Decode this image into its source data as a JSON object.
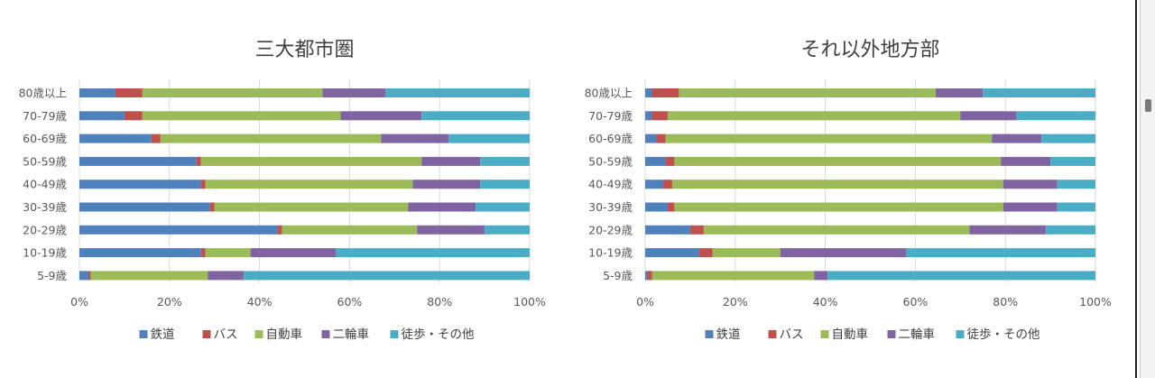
{
  "colors": {
    "rail": "#4f81bd",
    "bus": "#c0504d",
    "car": "#9bbb59",
    "twowheel": "#8064a2",
    "walk": "#4bacc6"
  },
  "chart_data": [
    {
      "type": "bar",
      "orientation": "horizontal",
      "stacked": true,
      "title": "三大都市圏",
      "categories": [
        "80歳以上",
        "70-79歳",
        "60-69歳",
        "50-59歳",
        "40-49歳",
        "30-39歳",
        "20-29歳",
        "10-19歳",
        "5-9歳"
      ],
      "xlim": [
        0,
        100
      ],
      "xticks": [
        "0%",
        "20%",
        "40%",
        "60%",
        "80%",
        "100%"
      ],
      "grid": true,
      "legend_position": "bottom",
      "series": [
        {
          "name": "鉄道",
          "color": "#4f81bd",
          "values": [
            8,
            10,
            16,
            26,
            27,
            29,
            44,
            27,
            2
          ]
        },
        {
          "name": "バス",
          "color": "#c0504d",
          "values": [
            6,
            4,
            2,
            1,
            1,
            1,
            1,
            1,
            0.5
          ]
        },
        {
          "name": "自動車",
          "color": "#9bbb59",
          "values": [
            40,
            44,
            49,
            49,
            46,
            43,
            30,
            10,
            26
          ]
        },
        {
          "name": "二輪車",
          "color": "#8064a2",
          "values": [
            14,
            18,
            15,
            13,
            15,
            15,
            15,
            19,
            8
          ]
        },
        {
          "name": "徒歩・その他",
          "color": "#4bacc6",
          "values": [
            32,
            24,
            18,
            11,
            11,
            12,
            10,
            43,
            63.5
          ]
        }
      ]
    },
    {
      "type": "bar",
      "orientation": "horizontal",
      "stacked": true,
      "title": "それ以外地方部",
      "categories": [
        "80歳以上",
        "70-79歳",
        "60-69歳",
        "50-59歳",
        "40-49歳",
        "30-39歳",
        "20-29歳",
        "10-19歳",
        "5-9歳"
      ],
      "xlim": [
        0,
        100
      ],
      "xticks": [
        "0%",
        "20%",
        "40%",
        "60%",
        "80%",
        "100%"
      ],
      "grid": true,
      "legend_position": "bottom",
      "series": [
        {
          "name": "鉄道",
          "color": "#4f81bd",
          "values": [
            1.5,
            1.5,
            2.5,
            4.5,
            4,
            5,
            10,
            12,
            0.5
          ]
        },
        {
          "name": "バス",
          "color": "#c0504d",
          "values": [
            6,
            3.5,
            2,
            2,
            2,
            1.5,
            3,
            3,
            1
          ]
        },
        {
          "name": "自動車",
          "color": "#9bbb59",
          "values": [
            57,
            65,
            72.5,
            72.5,
            73.5,
            73,
            59,
            15,
            36
          ]
        },
        {
          "name": "二輪車",
          "color": "#8064a2",
          "values": [
            10.5,
            12.5,
            11,
            11,
            12,
            12,
            17,
            28,
            3
          ]
        },
        {
          "name": "徒歩・その他",
          "color": "#4bacc6",
          "values": [
            25,
            17.5,
            12,
            10,
            8.5,
            8.5,
            11,
            42,
            59.5
          ]
        }
      ]
    }
  ]
}
